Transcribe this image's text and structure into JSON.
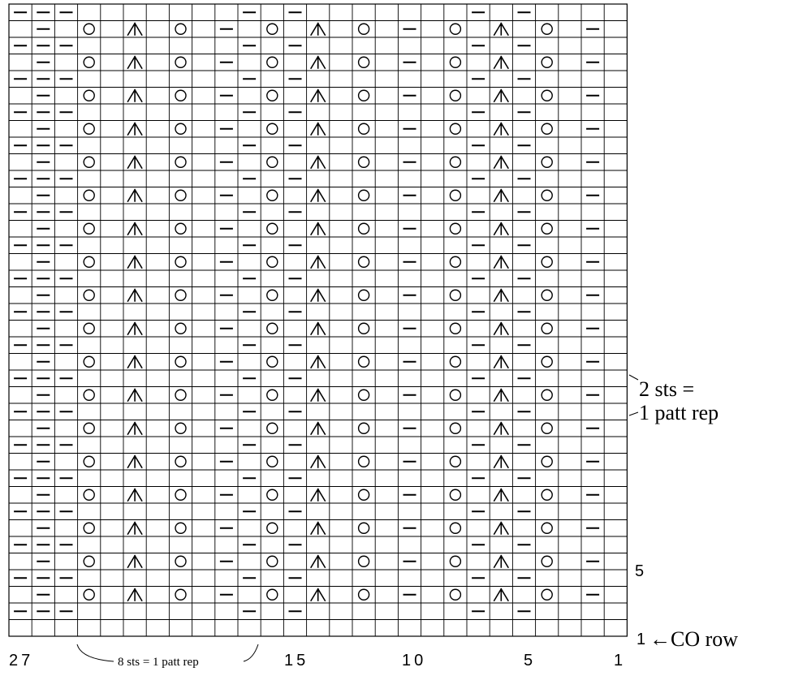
{
  "chart": {
    "stitch_count": 27,
    "row_count": 38,
    "row_label_top": "2 sts =",
    "row_label_bottom": "1 patt rep",
    "row_number_5": "5",
    "row_number_1": "1",
    "co_row_label": "←CO row",
    "stitch_number_27": "27",
    "stitch_number_15": "15",
    "stitch_number_10": "10",
    "stitch_number_5": "5",
    "stitch_number_1": "1",
    "stitch_repeat_label": "8 sts = 1 patt rep",
    "symbols": {
      "purl": "purl-symbol",
      "yarn_over": "yarn-over-symbol",
      "double_decrease": "centered-double-decrease-symbol"
    },
    "row_patterns": {
      "A": "P P P . . . . . . . P . P . . . . . . . P . P . . . . . . . P P",
      "B": ". P . O . X . O . P . O . X . O . P . O . X . O . P ."
    },
    "color_grid": "#000000",
    "color_background": "#ffffff"
  }
}
